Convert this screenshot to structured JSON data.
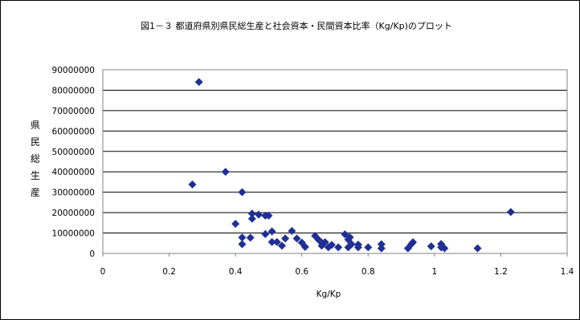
{
  "chart_data": {
    "type": "scatter",
    "title": "図1－３ 都道府県別県民総生産と社会資本・民間資本比率（Kg/Kp)のプロット",
    "xlabel": "Kg/Kp",
    "ylabel": "県民総生産",
    "xlim": [
      0,
      1.4
    ],
    "ylim": [
      0,
      90000000
    ],
    "x_ticks": [
      "0",
      "0.2",
      "0.4",
      "0.6",
      "0.8",
      "1",
      "1.2",
      "1.4"
    ],
    "y_ticks": [
      "0",
      "10000000",
      "20000000",
      "30000000",
      "40000000",
      "50000000",
      "60000000",
      "70000000",
      "80000000",
      "90000000"
    ],
    "grid": "horizontal",
    "legend": "none",
    "marker": "diamond",
    "color": "#1f2f96",
    "points": [
      [
        0.29,
        84000000
      ],
      [
        0.27,
        33800000
      ],
      [
        0.37,
        40000000
      ],
      [
        0.42,
        30000000
      ],
      [
        0.4,
        14500000
      ],
      [
        0.42,
        7800000
      ],
      [
        0.42,
        4500000
      ],
      [
        0.445,
        7700000
      ],
      [
        0.45,
        19500000
      ],
      [
        0.45,
        17000000
      ],
      [
        0.47,
        19000000
      ],
      [
        0.49,
        18500000
      ],
      [
        0.5,
        18500000
      ],
      [
        0.49,
        9500000
      ],
      [
        0.51,
        10800000
      ],
      [
        0.51,
        5600000
      ],
      [
        0.525,
        5600000
      ],
      [
        0.54,
        3800000
      ],
      [
        0.55,
        7300000
      ],
      [
        0.57,
        11000000
      ],
      [
        0.585,
        7300000
      ],
      [
        0.6,
        5300000
      ],
      [
        0.61,
        3200000
      ],
      [
        0.64,
        8600000
      ],
      [
        0.65,
        6800000
      ],
      [
        0.66,
        5300000
      ],
      [
        0.66,
        3800000
      ],
      [
        0.67,
        5500000
      ],
      [
        0.68,
        3000000
      ],
      [
        0.69,
        4200000
      ],
      [
        0.71,
        3000000
      ],
      [
        0.73,
        9400000
      ],
      [
        0.74,
        6800000
      ],
      [
        0.745,
        7900000
      ],
      [
        0.74,
        3000000
      ],
      [
        0.75,
        4500000
      ],
      [
        0.77,
        4300000
      ],
      [
        0.77,
        3000000
      ],
      [
        0.8,
        3000000
      ],
      [
        0.84,
        4500000
      ],
      [
        0.84,
        2500000
      ],
      [
        0.92,
        2500000
      ],
      [
        0.93,
        4500000
      ],
      [
        0.935,
        5500000
      ],
      [
        0.99,
        3500000
      ],
      [
        1.02,
        4600000
      ],
      [
        1.02,
        3000000
      ],
      [
        1.03,
        2500000
      ],
      [
        1.13,
        2500000
      ],
      [
        1.23,
        20300000
      ]
    ]
  }
}
